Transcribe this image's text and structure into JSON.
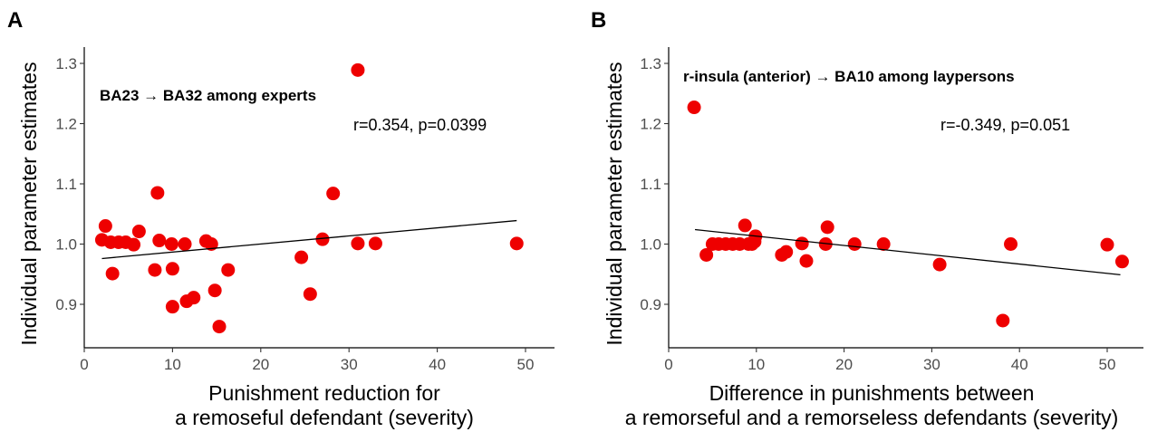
{
  "chart_data": [
    {
      "type": "scatter",
      "panel": "A",
      "annotation": "BA23 → BA32 among experts",
      "stat": "r=0.354,  p=0.0399",
      "xlabel_lines": [
        "Punishment reduction for",
        "a remoseful defendant (severity)"
      ],
      "ylabel": "Individual parameter estimates",
      "xlim": [
        0,
        50
      ],
      "ylim": [
        0.87,
        1.31
      ],
      "xticks": [
        0,
        10,
        20,
        30,
        40,
        50
      ],
      "yticks": [
        0.9,
        1.0,
        1.1,
        1.2,
        1.3
      ],
      "ytick_labels": [
        "0.9",
        "1.0",
        "1.1",
        "1.2",
        "1.3"
      ],
      "fit": {
        "x": [
          2,
          49
        ],
        "y": [
          0.976,
          1.039
        ]
      },
      "points": [
        {
          "x": 2,
          "y": 1.007
        },
        {
          "x": 2.4,
          "y": 1.03
        },
        {
          "x": 3,
          "y": 1.003
        },
        {
          "x": 3.2,
          "y": 0.951
        },
        {
          "x": 3.9,
          "y": 1.003
        },
        {
          "x": 4.7,
          "y": 1.003
        },
        {
          "x": 5.6,
          "y": 0.999
        },
        {
          "x": 6.2,
          "y": 1.021
        },
        {
          "x": 8,
          "y": 0.957
        },
        {
          "x": 8.3,
          "y": 1.085
        },
        {
          "x": 8.5,
          "y": 1.006
        },
        {
          "x": 9.9,
          "y": 1.0
        },
        {
          "x": 10,
          "y": 0.959
        },
        {
          "x": 10,
          "y": 0.896
        },
        {
          "x": 11.4,
          "y": 1.0
        },
        {
          "x": 11.6,
          "y": 0.905
        },
        {
          "x": 12.4,
          "y": 0.911
        },
        {
          "x": 13.8,
          "y": 1.005
        },
        {
          "x": 14.4,
          "y": 1.0
        },
        {
          "x": 14.8,
          "y": 0.923
        },
        {
          "x": 15.3,
          "y": 0.863
        },
        {
          "x": 16.3,
          "y": 0.957
        },
        {
          "x": 24.6,
          "y": 0.978
        },
        {
          "x": 25.6,
          "y": 0.917
        },
        {
          "x": 27,
          "y": 1.008
        },
        {
          "x": 28.2,
          "y": 1.084
        },
        {
          "x": 31,
          "y": 1.001
        },
        {
          "x": 31,
          "y": 1.289
        },
        {
          "x": 33,
          "y": 1.001
        },
        {
          "x": 49,
          "y": 1.001
        }
      ]
    },
    {
      "type": "scatter",
      "panel": "B",
      "annotation": "r-insula (anterior) → BA10  among laypersons",
      "stat": "r=-0.349,  p=0.051",
      "xlabel_lines": [
        "Difference in punishments between",
        "a remorseful and a remorseless defendants (severity)"
      ],
      "ylabel": "Individual parameter estimates",
      "xlim": [
        0,
        50
      ],
      "ylim": [
        0.87,
        1.31
      ],
      "xticks": [
        0,
        10,
        20,
        30,
        40,
        50
      ],
      "yticks": [
        0.9,
        1.0,
        1.1,
        1.2,
        1.3
      ],
      "ytick_labels": [
        "0.9",
        "1.0",
        "1.1",
        "1.2",
        "1.3"
      ],
      "fit": {
        "x": [
          3,
          51.5
        ],
        "y": [
          1.024,
          0.949
        ]
      },
      "points": [
        {
          "x": 2.9,
          "y": 1.227
        },
        {
          "x": 4.3,
          "y": 0.982
        },
        {
          "x": 5,
          "y": 1.0
        },
        {
          "x": 5.7,
          "y": 1.0
        },
        {
          "x": 6.5,
          "y": 1.0
        },
        {
          "x": 7.3,
          "y": 1.0
        },
        {
          "x": 8.1,
          "y": 1.0
        },
        {
          "x": 8.7,
          "y": 1.031
        },
        {
          "x": 9.1,
          "y": 1.0
        },
        {
          "x": 9.5,
          "y": 1.0
        },
        {
          "x": 9.9,
          "y": 1.013
        },
        {
          "x": 9.8,
          "y": 1.004
        },
        {
          "x": 12.9,
          "y": 0.982
        },
        {
          "x": 13.4,
          "y": 0.987
        },
        {
          "x": 15.2,
          "y": 1.001
        },
        {
          "x": 15.7,
          "y": 0.972
        },
        {
          "x": 17.9,
          "y": 1.0
        },
        {
          "x": 18.1,
          "y": 1.028
        },
        {
          "x": 21.2,
          "y": 1.0
        },
        {
          "x": 24.5,
          "y": 1.0
        },
        {
          "x": 30.9,
          "y": 0.966
        },
        {
          "x": 38.1,
          "y": 0.873
        },
        {
          "x": 39,
          "y": 1.0
        },
        {
          "x": 50,
          "y": 0.999
        },
        {
          "x": 51.7,
          "y": 0.971
        }
      ]
    }
  ]
}
